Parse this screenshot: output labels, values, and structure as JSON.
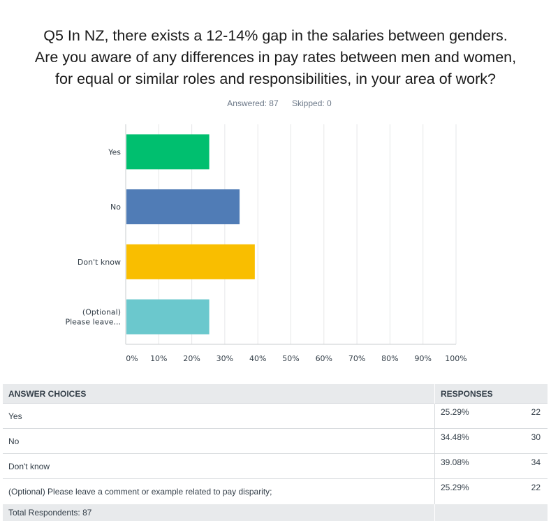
{
  "question": {
    "line1": "Q5 In NZ, there exists a 12-14% gap in the salaries between genders.",
    "line2": "Are you aware of any differences in pay rates between men and women,",
    "line3": "for equal or similar roles and responsibilities, in your area of work?"
  },
  "meta": {
    "answered": "Answered: 87",
    "skipped": "Skipped: 0"
  },
  "chart_data": {
    "type": "bar",
    "orientation": "horizontal",
    "categories": [
      "Yes",
      "No",
      "Don't know",
      "(Optional) Please leave..."
    ],
    "category_labels": [
      [
        "Yes"
      ],
      [
        "No"
      ],
      [
        "Don't know"
      ],
      [
        "(Optional)",
        "Please leave..."
      ]
    ],
    "values": [
      25.29,
      34.48,
      39.08,
      25.29
    ],
    "colors": [
      "#00bf6f",
      "#507cb6",
      "#f9be00",
      "#6bc8cd"
    ],
    "xlim": [
      0,
      100
    ],
    "ticks": [
      "0%",
      "10%",
      "20%",
      "30%",
      "40%",
      "50%",
      "60%",
      "70%",
      "80%",
      "90%",
      "100%"
    ],
    "grid": true
  },
  "table": {
    "header_choices": "ANSWER CHOICES",
    "header_responses": "RESPONSES",
    "rows": [
      {
        "choice": "Yes",
        "percent": "25.29%",
        "count": "22"
      },
      {
        "choice": "No",
        "percent": "34.48%",
        "count": "30"
      },
      {
        "choice": "Don't know",
        "percent": "39.08%",
        "count": "34"
      },
      {
        "choice": "(Optional) Please leave a comment or example related to pay disparity;",
        "percent": "25.29%",
        "count": "22"
      }
    ],
    "total": "Total Respondents: 87"
  }
}
